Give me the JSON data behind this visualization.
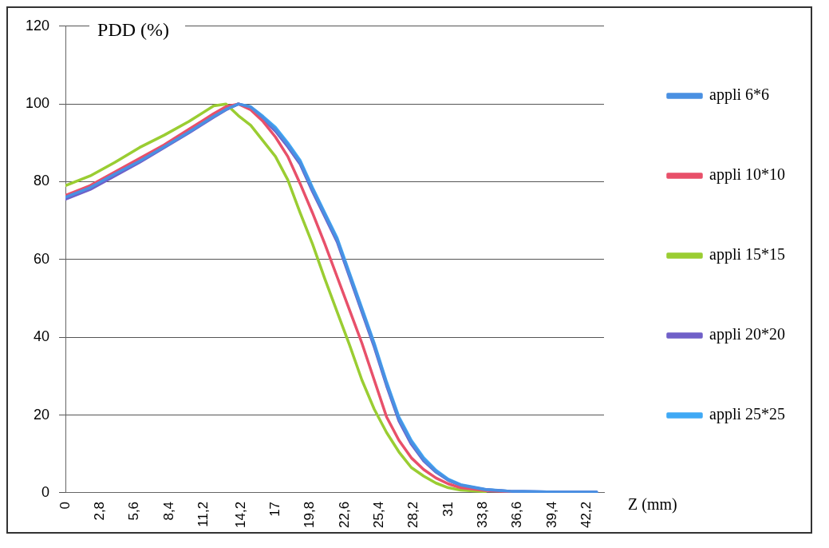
{
  "chart_data": {
    "type": "line",
    "ylabel": "PDD (%)",
    "xlabel": "Z (mm)",
    "x": [
      0,
      2,
      4,
      6,
      8,
      10,
      12,
      13,
      14,
      15,
      16,
      17,
      18,
      19,
      20,
      21,
      22,
      23,
      24,
      25,
      26,
      27,
      28,
      29,
      30,
      31,
      32,
      34,
      36,
      40,
      43
    ],
    "series": [
      {
        "name": "appli 6*6",
        "color": "#4a90e2",
        "values": [
          76,
          78.5,
          82,
          85.3,
          89,
          92.8,
          96.8,
          98.6,
          100,
          99.2,
          96.5,
          93.5,
          89.5,
          85,
          78,
          71.5,
          65,
          56,
          47,
          38,
          28,
          19,
          13,
          8.5,
          5.5,
          3.3,
          2,
          0.8,
          0.4,
          0.2,
          0.2
        ]
      },
      {
        "name": "appli 10*10",
        "color": "#e8506a",
        "values": [
          76.5,
          79,
          82.5,
          86,
          89.5,
          93.5,
          97.5,
          99.3,
          100,
          98.5,
          95.5,
          91.5,
          86.5,
          79.5,
          72,
          64,
          55.5,
          47,
          38.5,
          29,
          19.5,
          13.5,
          9,
          6,
          3.8,
          2.3,
          1.3,
          0.6,
          0.3,
          null,
          null
        ]
      },
      {
        "name": "appli 15*15",
        "color": "#9acd32",
        "values": [
          79,
          81.5,
          85,
          88.8,
          92,
          95.5,
          99.5,
          100,
          97,
          94.5,
          90.5,
          86.5,
          80.5,
          72,
          64,
          55,
          46.5,
          38,
          29,
          21.5,
          15.5,
          10.5,
          6.5,
          4.3,
          2.5,
          1.3,
          0.7,
          0.3,
          null,
          null,
          null
        ]
      },
      {
        "name": "appli 20*20",
        "color": "#7060c8",
        "values": [
          75.5,
          78,
          81.5,
          85,
          88.8,
          92.6,
          96.6,
          98.5,
          100,
          99,
          96.2,
          93,
          89,
          84.5,
          77.5,
          71,
          64.5,
          55.5,
          46.5,
          37.5,
          27.5,
          18.5,
          12.5,
          8.2,
          5.3,
          3.2,
          1.9,
          0.8,
          0.4,
          0.2,
          0.2
        ]
      },
      {
        "name": "appli 25*25",
        "color": "#3fa9f5",
        "values": [
          76,
          78.5,
          82,
          85.3,
          89,
          92.8,
          96.8,
          98.6,
          100,
          99.3,
          96.8,
          94,
          90,
          85.5,
          78.5,
          72,
          65.5,
          56.5,
          47.5,
          38.5,
          28.5,
          19.5,
          13.5,
          9,
          5.8,
          3.5,
          2.1,
          0.9,
          0.4,
          0.2,
          0.2
        ]
      }
    ],
    "xlim": [
      0,
      43.6
    ],
    "xticks": [
      0,
      {
        "value": 2.8,
        "label": "2,8"
      },
      {
        "value": 5.6,
        "label": "5,6"
      },
      {
        "value": 8.4,
        "label": "8,4"
      },
      {
        "value": 11.2,
        "label": "11,2"
      },
      {
        "value": 14.2,
        "label": "14,2"
      },
      17,
      {
        "value": 19.8,
        "label": "19,8"
      },
      {
        "value": 22.6,
        "label": "22,6"
      },
      {
        "value": 25.4,
        "label": "25,4"
      },
      {
        "value": 28.2,
        "label": "28,2"
      },
      31,
      {
        "value": 33.8,
        "label": "33,8"
      },
      {
        "value": 36.6,
        "label": "36,6"
      },
      {
        "value": 39.4,
        "label": "39,4"
      },
      {
        "value": 42.2,
        "label": "42,2"
      }
    ],
    "ylim": [
      0,
      120
    ],
    "yticks": [
      0,
      20,
      40,
      60,
      80,
      100,
      120
    ],
    "grid": "y",
    "legend": "right",
    "marker": "none",
    "line_style": "solid"
  }
}
